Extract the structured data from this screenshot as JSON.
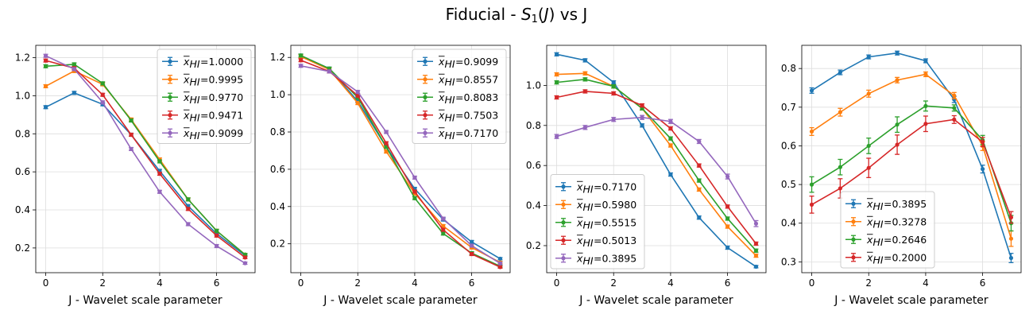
{
  "title_parts": {
    "prefix": "Fiducial - ",
    "symbol": "S",
    "subscript": "1",
    "paren_open": "(",
    "arg": "J",
    "paren_close": ")",
    "suffix": " vs J"
  },
  "chart_data": [
    {
      "type": "line",
      "xlabel": "J - Wavelet scale parameter",
      "xlim": [
        -0.35,
        7.35
      ],
      "ylim": [
        0.07,
        1.265
      ],
      "yticks": [
        0.2,
        0.4,
        0.6,
        0.8,
        1.0,
        1.2
      ],
      "xticks": [
        0,
        2,
        4,
        6
      ],
      "grid": true,
      "legend_position": "upper-right",
      "x": [
        0,
        1,
        2,
        3,
        4,
        5,
        6,
        7
      ],
      "series": [
        {
          "name": "=1.0000",
          "color": "#1f77b4",
          "values": [
            0.94,
            1.015,
            0.955,
            0.795,
            0.605,
            0.42,
            0.275,
            0.16
          ],
          "errors": [
            0.008,
            0.008,
            0.008,
            0.008,
            0.008,
            0.008,
            0.008,
            0.006
          ]
        },
        {
          "name": "=0.9995",
          "color": "#ff7f0e",
          "values": [
            1.05,
            1.13,
            1.06,
            0.875,
            0.665,
            0.455,
            0.29,
            0.165
          ],
          "errors": [
            0.008,
            0.008,
            0.008,
            0.008,
            0.008,
            0.008,
            0.008,
            0.006
          ]
        },
        {
          "name": "=0.9770",
          "color": "#2ca02c",
          "values": [
            1.155,
            1.165,
            1.065,
            0.87,
            0.655,
            0.455,
            0.29,
            0.165
          ],
          "errors": [
            0.008,
            0.008,
            0.008,
            0.008,
            0.008,
            0.008,
            0.008,
            0.006
          ]
        },
        {
          "name": "=0.9471",
          "color": "#d62728",
          "values": [
            1.185,
            1.145,
            1.005,
            0.795,
            0.59,
            0.405,
            0.265,
            0.15
          ],
          "errors": [
            0.008,
            0.008,
            0.008,
            0.008,
            0.008,
            0.008,
            0.008,
            0.006
          ]
        },
        {
          "name": "=0.9099",
          "color": "#9467bd",
          "values": [
            1.21,
            1.14,
            0.965,
            0.72,
            0.495,
            0.325,
            0.21,
            0.12
          ],
          "errors": [
            0.008,
            0.008,
            0.008,
            0.008,
            0.008,
            0.008,
            0.008,
            0.006
          ]
        }
      ]
    },
    {
      "type": "line",
      "xlabel": "J - Wavelet scale parameter",
      "xlim": [
        -0.35,
        7.35
      ],
      "ylim": [
        0.045,
        1.265
      ],
      "yticks": [
        0.2,
        0.4,
        0.6,
        0.8,
        1.0,
        1.2
      ],
      "xticks": [
        0,
        2,
        4,
        6
      ],
      "grid": true,
      "legend_position": "upper-right",
      "x": [
        0,
        1,
        2,
        3,
        4,
        5,
        6,
        7
      ],
      "series": [
        {
          "name": "=0.9099",
          "color": "#1f77b4",
          "values": [
            1.21,
            1.14,
            0.965,
            0.72,
            0.495,
            0.33,
            0.21,
            0.12
          ],
          "errors": [
            0.008,
            0.008,
            0.008,
            0.008,
            0.008,
            0.008,
            0.008,
            0.006
          ]
        },
        {
          "name": "=0.8557",
          "color": "#ff7f0e",
          "values": [
            1.205,
            1.135,
            0.955,
            0.695,
            0.47,
            0.295,
            0.18,
            0.1
          ],
          "errors": [
            0.008,
            0.008,
            0.008,
            0.008,
            0.008,
            0.008,
            0.008,
            0.006
          ]
        },
        {
          "name": "=0.8083",
          "color": "#2ca02c",
          "values": [
            1.21,
            1.14,
            0.985,
            0.72,
            0.445,
            0.255,
            0.15,
            0.08
          ],
          "errors": [
            0.008,
            0.008,
            0.008,
            0.008,
            0.008,
            0.008,
            0.008,
            0.006
          ]
        },
        {
          "name": "=0.7503",
          "color": "#d62728",
          "values": [
            1.185,
            1.125,
            0.995,
            0.74,
            0.48,
            0.275,
            0.145,
            0.075
          ],
          "errors": [
            0.008,
            0.008,
            0.008,
            0.008,
            0.008,
            0.008,
            0.008,
            0.006
          ]
        },
        {
          "name": "=0.7170",
          "color": "#9467bd",
          "values": [
            1.155,
            1.125,
            1.015,
            0.8,
            0.555,
            0.335,
            0.19,
            0.095
          ],
          "errors": [
            0.008,
            0.008,
            0.008,
            0.008,
            0.008,
            0.008,
            0.008,
            0.006
          ]
        }
      ]
    },
    {
      "type": "line",
      "xlabel": "J - Wavelet scale parameter",
      "xlim": [
        -0.35,
        7.35
      ],
      "ylim": [
        0.065,
        1.2
      ],
      "yticks": [
        0.2,
        0.4,
        0.6,
        0.8,
        1.0
      ],
      "xticks": [
        0,
        2,
        4,
        6
      ],
      "grid": true,
      "legend_position": "lower-left",
      "x": [
        0,
        1,
        2,
        3,
        4,
        5,
        6,
        7
      ],
      "series": [
        {
          "name": "=0.7170",
          "color": "#1f77b4",
          "values": [
            1.155,
            1.125,
            1.015,
            0.8,
            0.555,
            0.34,
            0.19,
            0.095
          ],
          "errors": [
            0.008,
            0.008,
            0.008,
            0.008,
            0.008,
            0.008,
            0.008,
            0.006
          ]
        },
        {
          "name": "=0.5980",
          "color": "#ff7f0e",
          "values": [
            1.055,
            1.06,
            0.995,
            0.885,
            0.7,
            0.48,
            0.295,
            0.15
          ],
          "errors": [
            0.008,
            0.008,
            0.008,
            0.008,
            0.008,
            0.008,
            0.008,
            0.008
          ]
        },
        {
          "name": "=0.5515",
          "color": "#2ca02c",
          "values": [
            1.015,
            1.03,
            0.995,
            0.885,
            0.735,
            0.525,
            0.335,
            0.175
          ],
          "errors": [
            0.008,
            0.008,
            0.008,
            0.008,
            0.008,
            0.008,
            0.008,
            0.008
          ]
        },
        {
          "name": "=0.5013",
          "color": "#d62728",
          "values": [
            0.94,
            0.97,
            0.96,
            0.9,
            0.785,
            0.6,
            0.395,
            0.21
          ],
          "errors": [
            0.008,
            0.008,
            0.008,
            0.008,
            0.008,
            0.008,
            0.008,
            0.008
          ]
        },
        {
          "name": "=0.3895",
          "color": "#9467bd",
          "values": [
            0.745,
            0.79,
            0.83,
            0.84,
            0.82,
            0.72,
            0.545,
            0.31
          ],
          "errors": [
            0.01,
            0.01,
            0.01,
            0.01,
            0.01,
            0.01,
            0.012,
            0.015
          ]
        }
      ]
    },
    {
      "type": "line",
      "xlabel": "J - Wavelet scale parameter",
      "xlim": [
        -0.35,
        7.35
      ],
      "ylim": [
        0.272,
        0.86
      ],
      "yticks": [
        0.3,
        0.4,
        0.5,
        0.6,
        0.7,
        0.8
      ],
      "xticks": [
        0,
        2,
        4,
        6
      ],
      "grid": true,
      "legend_position": "lower-center",
      "x": [
        0,
        1,
        2,
        3,
        4,
        5,
        6,
        7
      ],
      "series": [
        {
          "name": "=0.3895",
          "color": "#1f77b4",
          "values": [
            0.743,
            0.79,
            0.83,
            0.84,
            0.82,
            0.72,
            0.54,
            0.31
          ],
          "errors": [
            0.007,
            0.006,
            0.005,
            0.005,
            0.005,
            0.008,
            0.01,
            0.012
          ]
        },
        {
          "name": "=0.3278",
          "color": "#ff7f0e",
          "values": [
            0.637,
            0.687,
            0.735,
            0.77,
            0.785,
            0.73,
            0.6,
            0.36
          ],
          "errors": [
            0.01,
            0.01,
            0.009,
            0.007,
            0.006,
            0.008,
            0.012,
            0.02
          ]
        },
        {
          "name": "=0.2646",
          "color": "#2ca02c",
          "values": [
            0.5,
            0.545,
            0.6,
            0.655,
            0.703,
            0.698,
            0.615,
            0.4
          ],
          "errors": [
            0.02,
            0.02,
            0.02,
            0.02,
            0.013,
            0.008,
            0.012,
            0.02
          ]
        },
        {
          "name": "=0.2000",
          "color": "#d62728",
          "values": [
            0.448,
            0.49,
            0.543,
            0.603,
            0.657,
            0.668,
            0.61,
            0.415
          ],
          "errors": [
            0.022,
            0.025,
            0.025,
            0.025,
            0.02,
            0.01,
            0.012,
            0.015
          ]
        }
      ]
    }
  ]
}
